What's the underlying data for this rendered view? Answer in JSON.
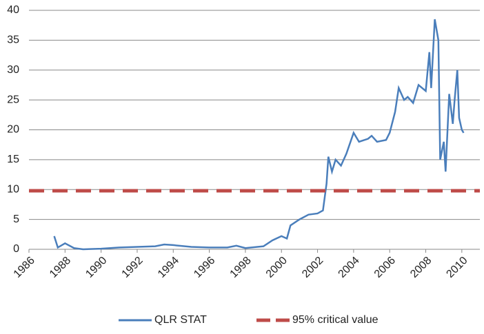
{
  "chart_data": {
    "type": "line",
    "xlim": [
      1986,
      2011
    ],
    "xticks": [
      1986,
      1988,
      1990,
      1992,
      1994,
      1996,
      1998,
      2000,
      2002,
      2004,
      2006,
      2008,
      2010
    ],
    "ylim": [
      0,
      40
    ],
    "yticks": [
      0,
      5,
      10,
      15,
      20,
      25,
      30,
      35,
      40
    ],
    "grid": true,
    "series": [
      {
        "name": "QLR STAT",
        "color": "#4a7ebb",
        "dash": false,
        "x": [
          1987.4,
          1987.6,
          1988.0,
          1988.5,
          1989,
          1990,
          1991,
          1992,
          1993,
          1993.5,
          1994,
          1995,
          1996,
          1997,
          1997.5,
          1998,
          1999,
          1999.5,
          2000,
          2000.3,
          2000.5,
          2001,
          2001.5,
          2002,
          2002.3,
          2002.5,
          2002.6,
          2002.8,
          2003,
          2003.3,
          2003.6,
          2004,
          2004.3,
          2004.8,
          2005,
          2005.3,
          2005.8,
          2006,
          2006.3,
          2006.5,
          2006.8,
          2007,
          2007.3,
          2007.6,
          2008,
          2008.2,
          2008.3,
          2008.5,
          2008.7,
          2008.8,
          2009,
          2009.1,
          2009.3,
          2009.5,
          2009.6,
          2009.75,
          2009.85,
          2010,
          2010.1
        ],
        "values": [
          2.2,
          0.3,
          1.0,
          0.2,
          0.0,
          0.1,
          0.3,
          0.4,
          0.5,
          0.8,
          0.7,
          0.4,
          0.3,
          0.3,
          0.6,
          0.2,
          0.5,
          1.5,
          2.2,
          1.8,
          4.0,
          5.0,
          5.8,
          6.0,
          6.5,
          11,
          15.5,
          13,
          15,
          14,
          16,
          19.5,
          18,
          18.5,
          19,
          18,
          18.3,
          19.5,
          23,
          27,
          25,
          25.5,
          24.5,
          27.5,
          26.5,
          33,
          27,
          38.5,
          35,
          15,
          18,
          13,
          26,
          21,
          25,
          30,
          22,
          20,
          19.5
        ]
      },
      {
        "name": "95% critical value",
        "color": "#be4b48",
        "dash": true,
        "x": [
          1986,
          2011
        ],
        "values": [
          9.8,
          9.8
        ]
      }
    ]
  }
}
